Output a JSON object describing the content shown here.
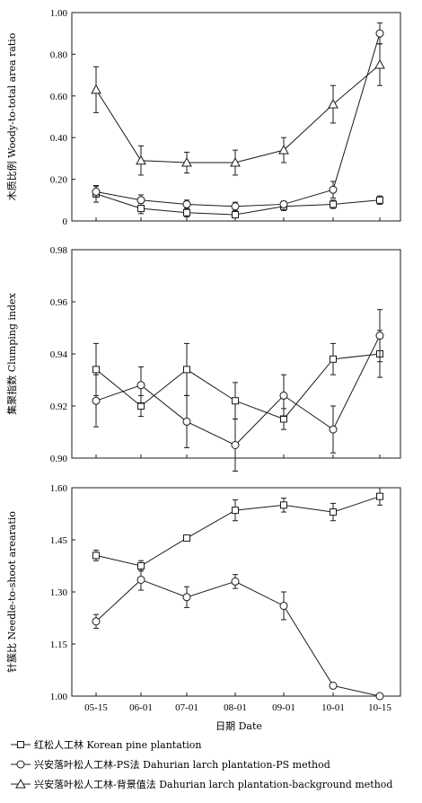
{
  "chart_data": [
    {
      "type": "line",
      "ylabel": "木质比例 Woody-to-total area ratio",
      "ylim": [
        0,
        1.0
      ],
      "yticks": [
        "0",
        "0.20",
        "0.40",
        "0.60",
        "0.80",
        "1.00"
      ],
      "categories": [
        "05-15",
        "06-01",
        "07-01",
        "08-01",
        "09-01",
        "10-01",
        "10-15"
      ],
      "series": [
        {
          "name": "红松人工林 Korean pine plantation",
          "marker": "square",
          "values": [
            0.13,
            0.06,
            0.04,
            0.03,
            0.07,
            0.08,
            0.1
          ],
          "errors": [
            0.04,
            0.025,
            0.02,
            0.015,
            0.02,
            0.02,
            0.02
          ]
        },
        {
          "name": "兴安落叶松人工林-PS法 Dahurian larch plantation-PS method",
          "marker": "circle",
          "values": [
            0.14,
            0.1,
            0.08,
            0.07,
            0.08,
            0.15,
            0.9
          ],
          "errors": [
            0.025,
            0.025,
            0.02,
            0.02,
            0.015,
            0.04,
            0.05
          ]
        },
        {
          "name": "兴安落叶松人工林-背景值法 Dahurian larch plantation-background method",
          "marker": "triangle",
          "values": [
            0.63,
            0.29,
            0.28,
            0.28,
            0.34,
            0.56,
            0.75
          ],
          "errors": [
            0.11,
            0.07,
            0.05,
            0.06,
            0.06,
            0.09,
            0.1
          ]
        }
      ]
    },
    {
      "type": "line",
      "ylabel": "集聚指数 Clumping index",
      "ylim": [
        0.9,
        0.98
      ],
      "yticks": [
        "0.90",
        "0.92",
        "0.94",
        "0.96",
        "0.98"
      ],
      "categories": [
        "05-15",
        "06-01",
        "07-01",
        "08-01",
        "09-01",
        "10-01",
        "10-15"
      ],
      "series": [
        {
          "name": "红松人工林 Korean pine plantation",
          "marker": "square",
          "values": [
            0.934,
            0.92,
            0.934,
            0.922,
            0.915,
            0.938,
            0.94
          ],
          "errors": [
            0.01,
            0.004,
            0.01,
            0.007,
            0.004,
            0.006,
            0.009
          ]
        },
        {
          "name": "兴安落叶松人工林-PS法 Dahurian larch plantation-PS method",
          "marker": "circle",
          "values": [
            0.922,
            0.928,
            0.914,
            0.905,
            0.924,
            0.911,
            0.947
          ],
          "errors": [
            0.01,
            0.007,
            0.01,
            0.01,
            0.008,
            0.009,
            0.01
          ]
        }
      ]
    },
    {
      "type": "line",
      "ylabel": "针簇比 Needle-to-shoot arearatio",
      "xlabel": "日期 Date",
      "ylim": [
        1.0,
        1.6
      ],
      "yticks": [
        "1.00",
        "1.15",
        "1.30",
        "1.45",
        "1.60"
      ],
      "categories": [
        "05-15",
        "06-01",
        "07-01",
        "08-01",
        "09-01",
        "10-01",
        "10-15"
      ],
      "series": [
        {
          "name": "红松人工林 Korean pine plantation",
          "marker": "square",
          "values": [
            1.405,
            1.375,
            1.455,
            1.535,
            1.55,
            1.53,
            1.575
          ],
          "errors": [
            0.015,
            0.015,
            0.008,
            0.03,
            0.02,
            0.025,
            0.025
          ]
        },
        {
          "name": "兴安落叶松人工林-PS法 Dahurian larch plantation-PS method",
          "marker": "circle",
          "values": [
            1.215,
            1.335,
            1.285,
            1.33,
            1.26,
            1.03,
            1.0
          ],
          "errors": [
            0.02,
            0.03,
            0.03,
            0.02,
            0.04,
            0.003,
            0.003
          ]
        }
      ]
    }
  ],
  "legend": {
    "placement": "bottom",
    "items": [
      {
        "marker": "square",
        "label": "红松人工林 Korean pine plantation"
      },
      {
        "marker": "circle",
        "label": "兴安落叶松人工林-PS法 Dahurian larch plantation-PS method"
      },
      {
        "marker": "triangle",
        "label": "兴安落叶松人工林-背景值法 Dahurian larch plantation-background method"
      }
    ]
  },
  "colors": {
    "line": "#1a1a1a",
    "background": "#ffffff"
  }
}
